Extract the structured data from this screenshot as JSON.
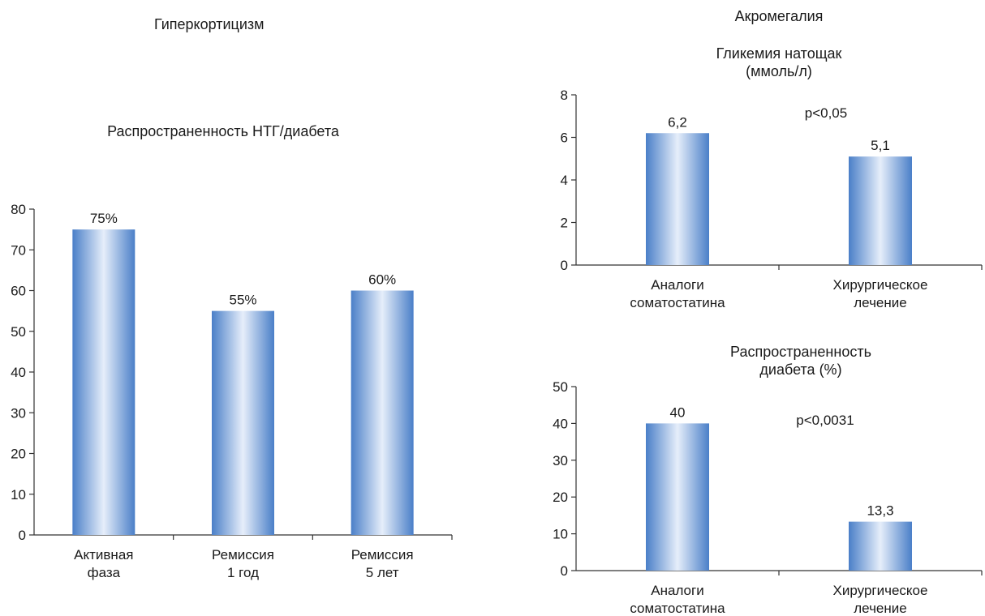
{
  "titles": {
    "left": "Гиперкортицизм",
    "right": "Акромегалия"
  },
  "colors": {
    "bar_edge": "#4a7fc8",
    "bar_mid": "#e6eefa",
    "axis": "#333333"
  },
  "chart_data": [
    {
      "type": "bar",
      "title": "Распространенность НТГ/диабета",
      "categories": [
        [
          "Активная",
          "фаза"
        ],
        [
          "Ремиссия",
          "1 год"
        ],
        [
          "Ремиссия",
          "5 лет"
        ]
      ],
      "values": [
        75,
        55,
        60
      ],
      "data_labels": [
        "75%",
        "55%",
        "60%"
      ],
      "yticks": [
        0,
        10,
        20,
        30,
        40,
        50,
        60,
        70,
        80
      ],
      "ylim": [
        0,
        80
      ],
      "grid": false
    },
    {
      "type": "bar",
      "title": [
        "Гликемия натощак",
        "(ммоль/л)"
      ],
      "categories": [
        [
          "Аналоги",
          "соматостатина"
        ],
        [
          "Хирургическое",
          "лечение"
        ]
      ],
      "values": [
        6.2,
        5.1
      ],
      "data_labels": [
        "6,2",
        "5,1"
      ],
      "yticks": [
        0,
        2,
        4,
        6,
        8
      ],
      "ylim": [
        0,
        8
      ],
      "annotation": "p<0,05",
      "grid": false
    },
    {
      "type": "bar",
      "title": [
        "Распространенность",
        "диабета (%)"
      ],
      "categories": [
        [
          "Аналоги",
          "соматостатина"
        ],
        [
          "Хирургическое",
          "лечение"
        ]
      ],
      "values": [
        40,
        13.3
      ],
      "data_labels": [
        "40",
        "13,3"
      ],
      "yticks": [
        0,
        10,
        20,
        30,
        40,
        50
      ],
      "ylim": [
        0,
        50
      ],
      "annotation": "p<0,0031",
      "grid": false
    }
  ]
}
